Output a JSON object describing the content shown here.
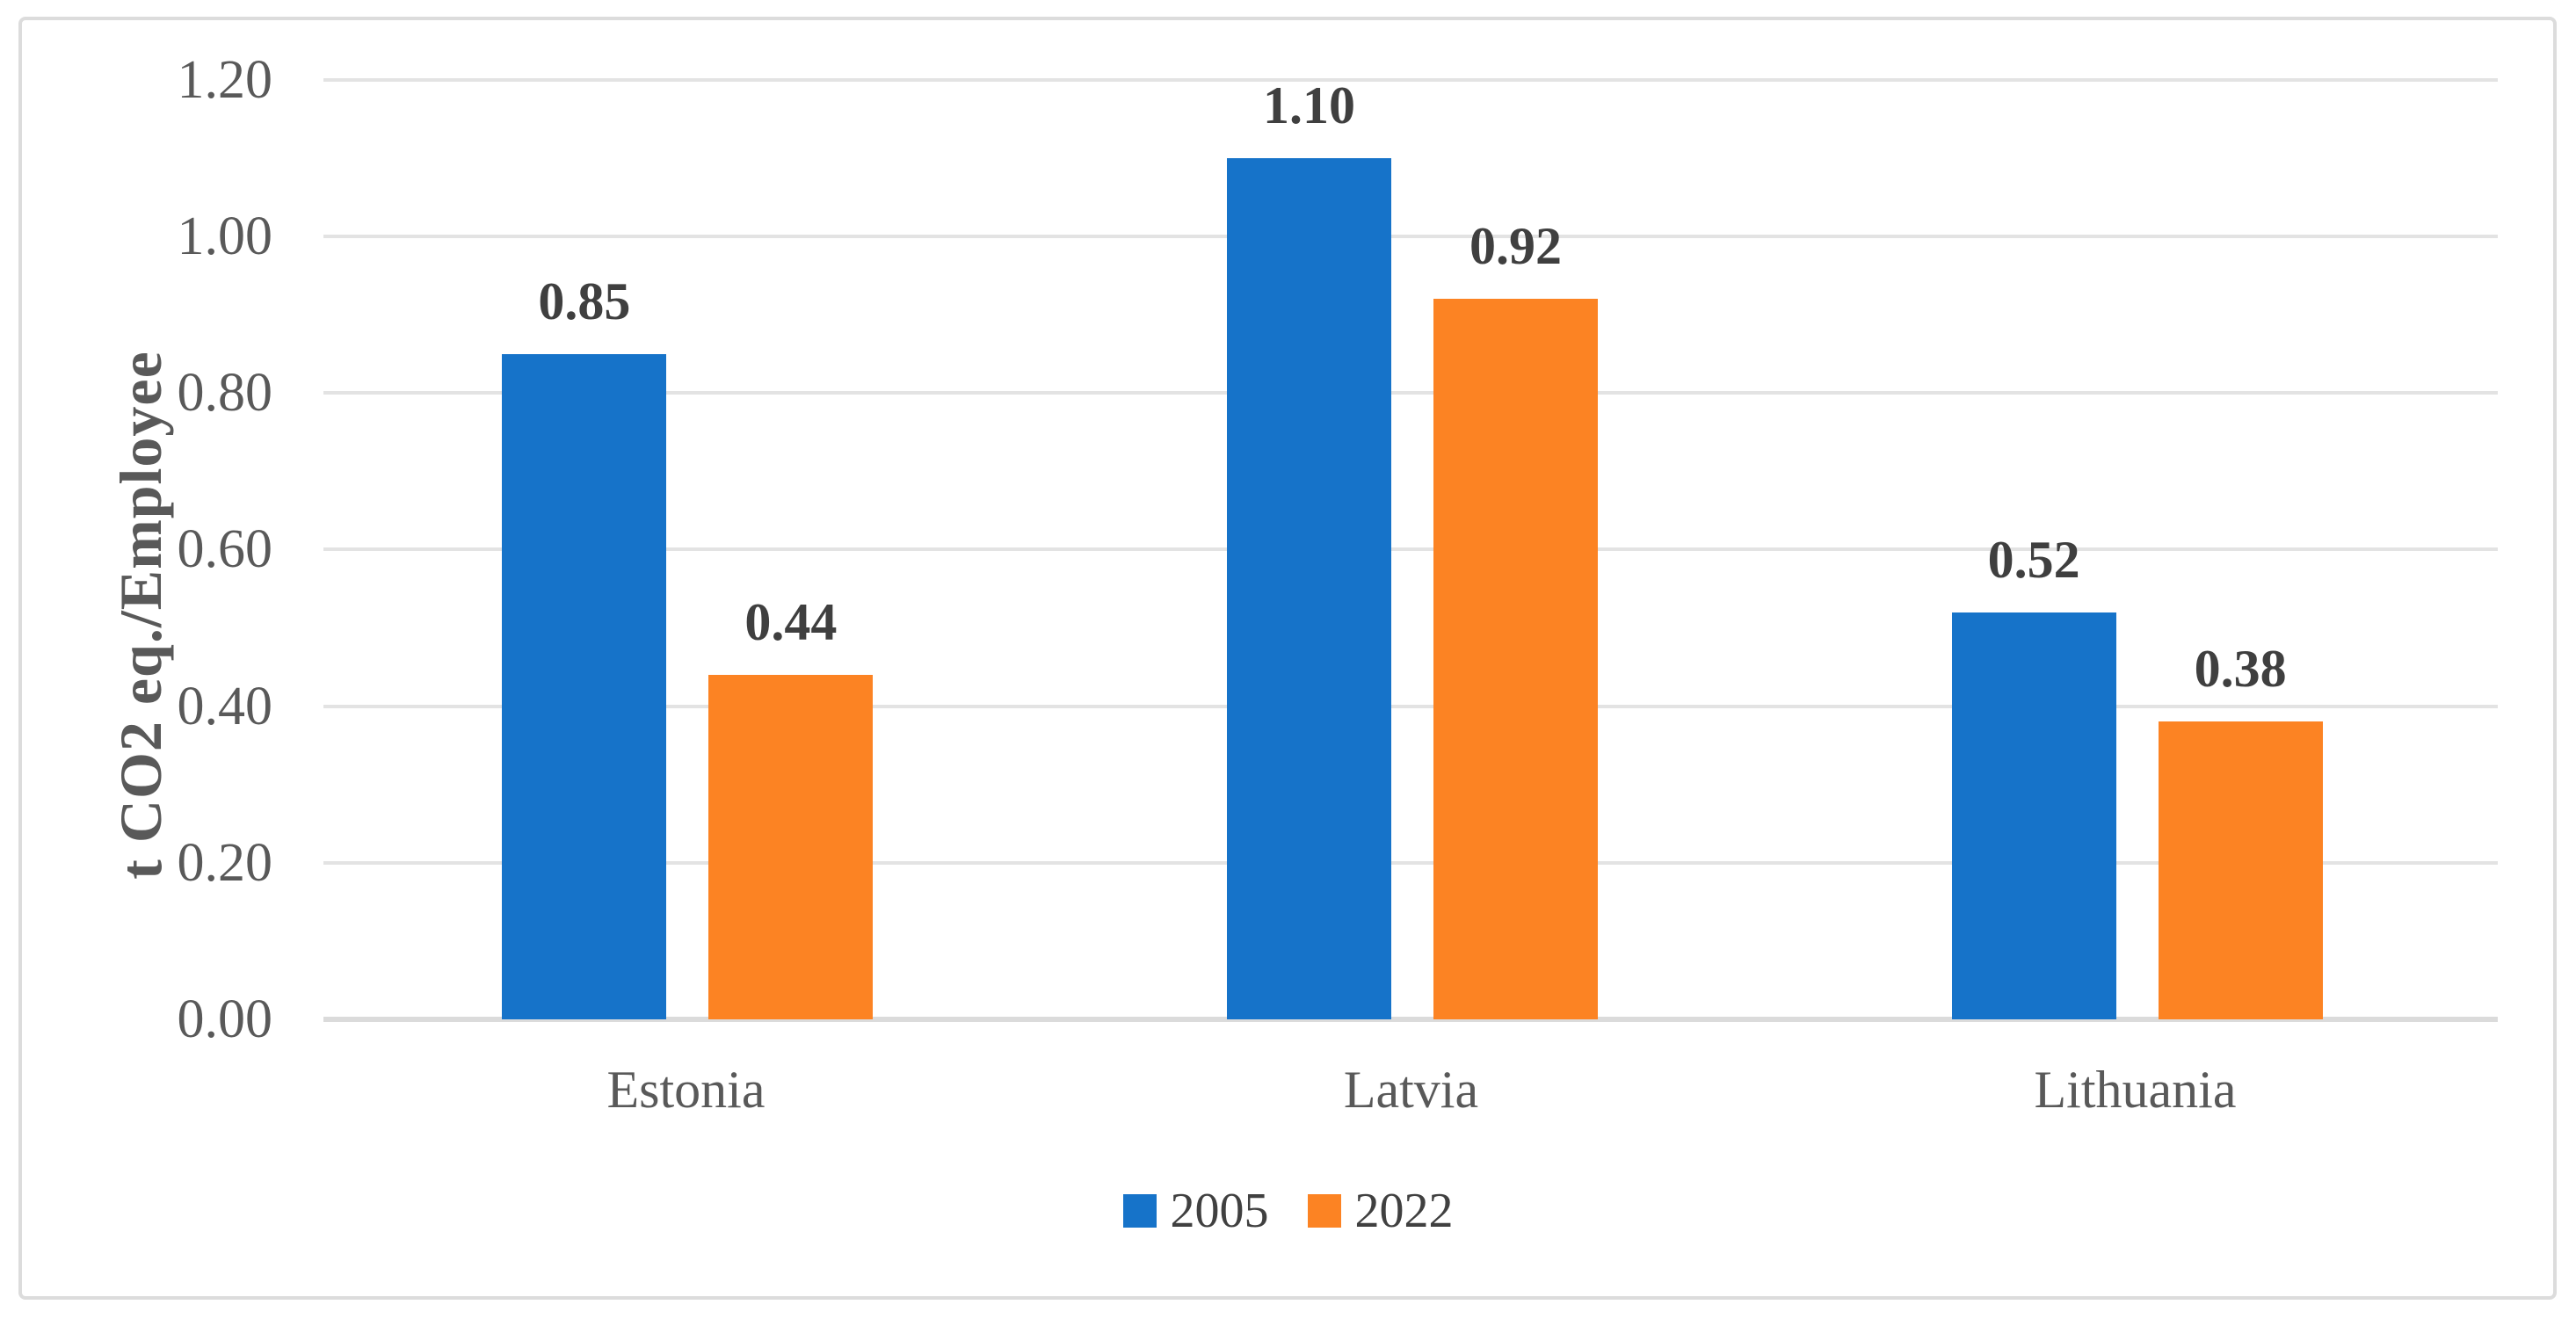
{
  "chart_data": {
    "type": "bar",
    "title": "",
    "categories": [
      "Estonia",
      "Latvia",
      "Lithuania"
    ],
    "series": [
      {
        "name": "2005",
        "values": [
          0.85,
          1.1,
          0.52
        ]
      },
      {
        "name": "2022",
        "values": [
          0.44,
          0.92,
          0.38
        ]
      }
    ],
    "data_labels": [
      [
        "0.85",
        "1.10",
        "0.52"
      ],
      [
        "0.44",
        "0.92",
        "0.38"
      ]
    ],
    "xlabel": "",
    "ylabel": "t CO2 eq./Employee",
    "ylim": [
      0,
      1.2
    ],
    "ytick_step": 0.2,
    "yticks": [
      {
        "value": 0.0,
        "label": "0.00"
      },
      {
        "value": 0.2,
        "label": "0.20"
      },
      {
        "value": 0.4,
        "label": "0.40"
      },
      {
        "value": 0.6,
        "label": "0.60"
      },
      {
        "value": 0.8,
        "label": "0.80"
      },
      {
        "value": 1.0,
        "label": "1.00"
      },
      {
        "value": 1.2,
        "label": "1.20"
      }
    ],
    "grid": true,
    "legend_position": "bottom-center"
  },
  "colors": {
    "series_2005": "#1673C9",
    "series_2022": "#FC8323",
    "gridline": "#E3E3E3",
    "axis_line": "#DBDBDB",
    "frame_border": "#DCDCDC",
    "tick_text": "#595959",
    "category_text": "#595959",
    "data_label_text": "#3F3F3F",
    "legend_text": "#404040",
    "axis_title_text": "#595959",
    "background": "#FFFFFF"
  }
}
